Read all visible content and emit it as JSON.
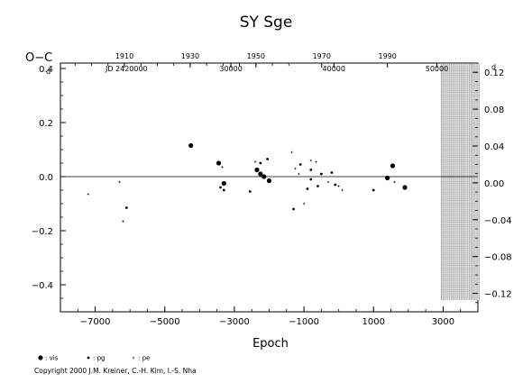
{
  "chart_data": {
    "type": "scatter",
    "title": "SY  Sge",
    "ylabel": "O−C",
    "ylabel_superscript": "d",
    "xlabel": "Epoch",
    "xlim": [
      -8000,
      4000
    ],
    "ylim": [
      -0.5,
      0.42
    ],
    "x_ticks": [
      -7000,
      -5000,
      -3000,
      -1000,
      1000,
      3000
    ],
    "x_tick_labels": [
      "−7000",
      "−5000",
      "−3000",
      "−1000",
      "1000",
      "3000"
    ],
    "y_ticks": [
      -0.4,
      -0.2,
      0.0,
      0.2,
      0.4
    ],
    "y_tick_labels": [
      "−0.4",
      "−0.2",
      "0.0",
      "0.2",
      "0.4"
    ],
    "top_axis": {
      "year_ticks": [
        "1910",
        "1930",
        "1950",
        "1970",
        "1990"
      ],
      "year_positions_epoch": [
        -6160,
        -4270,
        -2380,
        -490,
        1400
      ],
      "jd_prefix": "JD 2420000",
      "jd_prefix_epoch": -6100,
      "jd_ticks": [
        "30000",
        "40000",
        "50000"
      ],
      "jd_positions_epoch": [
        -3100,
        -140,
        2820
      ]
    },
    "right_axis": {
      "range": [
        -0.14,
        0.13
      ],
      "ticks": [
        -0.12,
        -0.08,
        -0.04,
        0.0,
        0.04,
        0.08,
        0.12
      ],
      "tick_labels": [
        "−0.12",
        "−0.08",
        "−0.04",
        "0.00",
        "0.04",
        "0.08",
        "0.12"
      ],
      "top_superscript": "d"
    },
    "zero_line": 0.0,
    "future_band": {
      "from": 3000,
      "to": 4000
    },
    "series": [
      {
        "name": ": vis",
        "marker": "large-dot",
        "points": [
          [
            -4250,
            0.115
          ],
          [
            -3450,
            0.05
          ],
          [
            -3300,
            -0.025
          ],
          [
            -2350,
            0.025
          ],
          [
            -2250,
            0.01
          ],
          [
            -2150,
            0.0
          ],
          [
            -2000,
            -0.015
          ],
          [
            1400,
            -0.005
          ],
          [
            1550,
            0.04
          ],
          [
            1900,
            -0.04
          ]
        ]
      },
      {
        "name": ": pg",
        "marker": "small-dot",
        "points": [
          [
            -6100,
            -0.115
          ],
          [
            -3400,
            -0.04
          ],
          [
            -3300,
            -0.05
          ],
          [
            -2550,
            -0.055
          ],
          [
            -2250,
            0.05
          ],
          [
            -2050,
            0.065
          ],
          [
            -1300,
            -0.12
          ],
          [
            -1100,
            0.045
          ],
          [
            -900,
            -0.045
          ],
          [
            -800,
            0.025
          ],
          [
            -800,
            -0.01
          ],
          [
            -600,
            -0.035
          ],
          [
            -500,
            0.01
          ],
          [
            -200,
            0.015
          ],
          [
            -100,
            -0.03
          ],
          [
            1000,
            -0.05
          ]
        ]
      },
      {
        "name": ": pe",
        "marker": "tiny-dot",
        "points": [
          [
            -7200,
            -0.065
          ],
          [
            -6300,
            -0.02
          ],
          [
            -6200,
            -0.165
          ],
          [
            -3350,
            0.035
          ],
          [
            -2400,
            0.055
          ],
          [
            -1350,
            0.09
          ],
          [
            -1250,
            0.03
          ],
          [
            -1150,
            0.01
          ],
          [
            -1000,
            -0.1
          ],
          [
            -800,
            0.06
          ],
          [
            -650,
            0.055
          ],
          [
            -300,
            -0.02
          ],
          [
            0,
            -0.035
          ],
          [
            100,
            -0.05
          ],
          [
            1600,
            -0.02
          ]
        ]
      }
    ],
    "legend_position": "bottom-left"
  },
  "copyright": "Copyright 2000 J.M. Kreiner, C.-H. Kim, I.-S. Nha"
}
